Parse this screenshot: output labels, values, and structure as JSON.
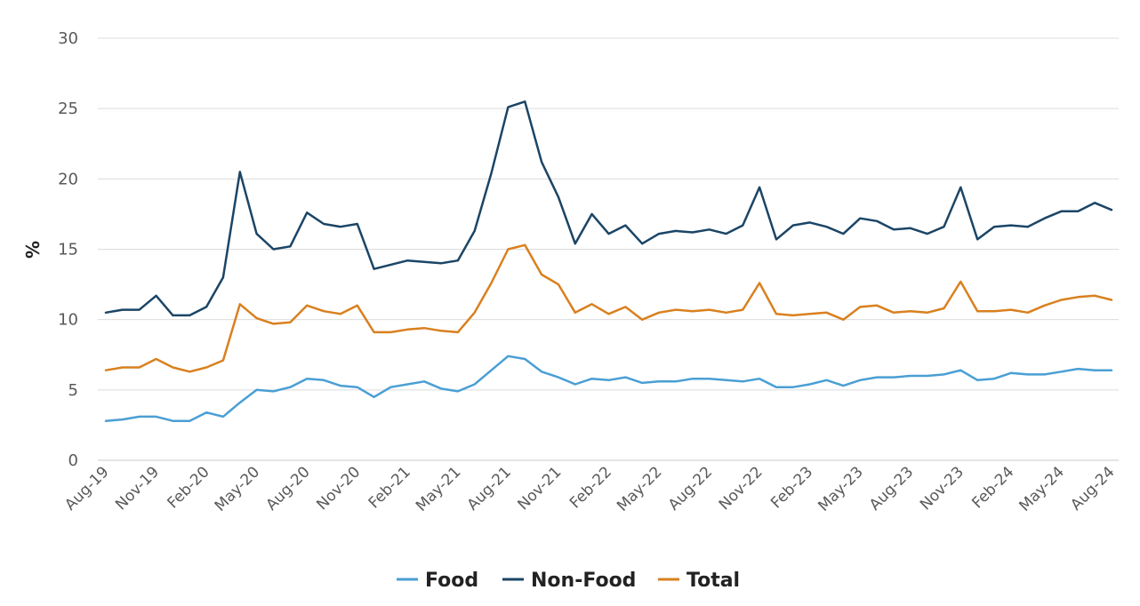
{
  "chart_data": {
    "type": "line",
    "title": "",
    "xlabel": "",
    "ylabel": "%",
    "ylim": [
      0,
      30
    ],
    "yticks": [
      "0",
      "5",
      "10",
      "15",
      "20",
      "25",
      "30"
    ],
    "grid": true,
    "legend_position": "bottom",
    "x": [
      "Aug-19",
      "Sep-19",
      "Oct-19",
      "Nov-19",
      "Dec-19",
      "Jan-20",
      "Feb-20",
      "Mar-20",
      "Apr-20",
      "May-20",
      "Jun-20",
      "Jul-20",
      "Aug-20",
      "Sep-20",
      "Oct-20",
      "Nov-20",
      "Dec-20",
      "Jan-21",
      "Feb-21",
      "Mar-21",
      "Apr-21",
      "May-21",
      "Jun-21",
      "Jul-21",
      "Aug-21",
      "Sep-21",
      "Oct-21",
      "Nov-21",
      "Dec-21",
      "Jan-22",
      "Feb-22",
      "Mar-22",
      "Apr-22",
      "May-22",
      "Jun-22",
      "Jul-22",
      "Aug-22",
      "Sep-22",
      "Oct-22",
      "Nov-22",
      "Dec-22",
      "Jan-23",
      "Feb-23",
      "Mar-23",
      "Apr-23",
      "May-23",
      "Jun-23",
      "Jul-23",
      "Aug-23",
      "Sep-23",
      "Oct-23",
      "Nov-23",
      "Dec-23",
      "Jan-24",
      "Feb-24",
      "Mar-24",
      "Apr-24",
      "May-24",
      "Jun-24",
      "Jul-24",
      "Aug-24"
    ],
    "xtick_labels": [
      "Aug-19",
      "Nov-19",
      "Feb-20",
      "May-20",
      "Aug-20",
      "Nov-20",
      "Feb-21",
      "May-21",
      "Aug-21",
      "Nov-21",
      "Feb-22",
      "May-22",
      "Aug-22",
      "Nov-22",
      "Feb-23",
      "May-23",
      "Aug-23",
      "Nov-23",
      "Feb-24",
      "May-24",
      "Aug-24"
    ],
    "series": [
      {
        "name": "Food",
        "color": "#4a9fd4",
        "values": [
          2.8,
          2.9,
          3.1,
          3.1,
          2.8,
          2.8,
          3.4,
          3.1,
          4.1,
          5.0,
          4.9,
          5.2,
          5.8,
          5.7,
          5.3,
          5.2,
          4.5,
          5.2,
          5.4,
          5.6,
          5.1,
          4.9,
          5.4,
          6.4,
          7.4,
          7.2,
          6.3,
          5.9,
          5.4,
          5.8,
          5.7,
          5.9,
          5.5,
          5.6,
          5.6,
          5.8,
          5.8,
          5.7,
          5.6,
          5.8,
          5.2,
          5.2,
          5.4,
          5.7,
          5.3,
          5.7,
          5.9,
          5.9,
          6.0,
          6.0,
          6.1,
          6.4,
          5.7,
          5.8,
          6.2,
          6.1,
          6.1,
          6.3,
          6.5,
          6.4,
          6.4
        ]
      },
      {
        "name": "Non-Food",
        "color": "#1b4566",
        "values": [
          10.5,
          10.7,
          10.7,
          11.7,
          10.3,
          10.3,
          10.9,
          13.0,
          20.5,
          16.1,
          15.0,
          15.2,
          17.6,
          16.8,
          16.6,
          16.8,
          13.6,
          13.9,
          14.2,
          14.1,
          14.0,
          14.2,
          16.3,
          20.4,
          25.1,
          25.5,
          21.2,
          18.7,
          15.4,
          17.5,
          16.1,
          16.7,
          15.4,
          16.1,
          16.3,
          16.2,
          16.4,
          16.1,
          16.7,
          19.4,
          15.7,
          16.7,
          16.9,
          16.6,
          16.1,
          17.2,
          17.0,
          16.4,
          16.5,
          16.1,
          16.6,
          19.4,
          15.7,
          16.6,
          16.7,
          16.6,
          17.2,
          17.7,
          17.7,
          18.3,
          17.8
        ]
      },
      {
        "name": "Total",
        "color": "#d9801f",
        "values": [
          6.4,
          6.6,
          6.6,
          7.2,
          6.6,
          6.3,
          6.6,
          7.1,
          11.1,
          10.1,
          9.7,
          9.8,
          11.0,
          10.6,
          10.4,
          11.0,
          9.1,
          9.1,
          9.3,
          9.4,
          9.2,
          9.1,
          10.5,
          12.6,
          15.0,
          15.3,
          13.2,
          12.5,
          10.5,
          11.1,
          10.4,
          10.9,
          10.0,
          10.5,
          10.7,
          10.6,
          10.7,
          10.5,
          10.7,
          12.6,
          10.4,
          10.3,
          10.4,
          10.5,
          10.0,
          10.9,
          11.0,
          10.5,
          10.6,
          10.5,
          10.8,
          12.7,
          10.6,
          10.6,
          10.7,
          10.5,
          11.0,
          11.4,
          11.6,
          11.7,
          11.4
        ]
      }
    ]
  }
}
